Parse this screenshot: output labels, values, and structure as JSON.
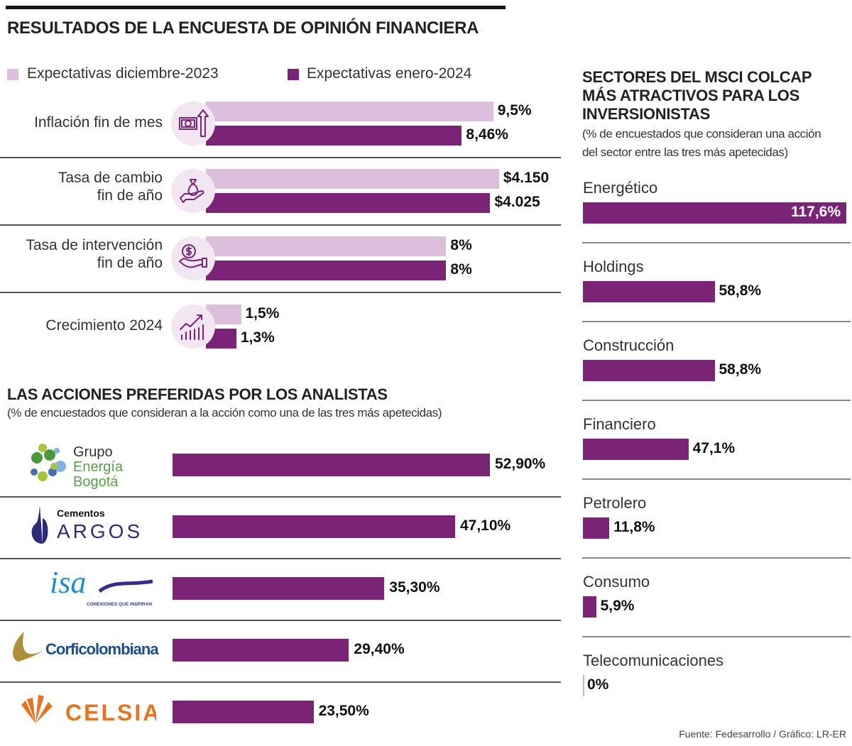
{
  "title": "RESULTADOS DE LA ENCUESTA DE OPINIÓN FINANCIERA",
  "colors": {
    "light": "#dcbfdd",
    "dark": "#7a2377",
    "icon_bg": "#f2e6f2"
  },
  "chart_data": [
    {
      "type": "bar",
      "orientation": "horizontal",
      "title": "RESULTADOS DE LA ENCUESTA DE OPINIÓN FINANCIERA",
      "legend": "top",
      "categories": [
        "Inflación fin de mes",
        "Tasa de cambio fin de año",
        "Tasa de intervención fin de año",
        "Crecimiento 2024"
      ],
      "category_lines": [
        [
          "Inflación fin de mes"
        ],
        [
          "Tasa de cambio",
          "fin de año"
        ],
        [
          "Tasa de intervención",
          "fin de año"
        ],
        [
          "Crecimiento 2024"
        ]
      ],
      "icons": [
        "money-up-arrow-icon",
        "money-bag-hand-icon",
        "dollar-coin-hand-icon",
        "growth-chart-icon"
      ],
      "series": [
        {
          "name": "Expectativas diciembre-2023",
          "values": [
            9.5,
            4150,
            8,
            1.5
          ],
          "labels": [
            "9,5%",
            "$4.150",
            "8%",
            "1,5%"
          ]
        },
        {
          "name": "Expectativas enero-2024",
          "values": [
            8.46,
            4025,
            8,
            1.3
          ],
          "labels": [
            "8,46%",
            "$4.025",
            "8%",
            "1,3%"
          ]
        }
      ]
    },
    {
      "type": "bar",
      "orientation": "horizontal",
      "title": "LAS ACCIONES PREFERIDAS POR LOS ANALISTAS",
      "subtitle": "(% de encuestados que consideran a la acción como una de las tres más apetecidas)",
      "categories": [
        "Grupo Energía Bogotá",
        "Cementos Argos",
        "ISA",
        "Corficolombiana",
        "Celsia"
      ],
      "logo_text": [
        [
          "Grupo",
          "Energía",
          "Bogotá"
        ],
        [
          "Cementos",
          "ARGOS"
        ],
        [
          "isa",
          "CONEXIONES QUE INSPIRAN"
        ],
        [
          "Corficolombiana"
        ],
        [
          "CELSIA"
        ]
      ],
      "values": [
        52.9,
        47.1,
        35.3,
        29.4,
        23.5
      ],
      "labels": [
        "52,90%",
        "47,10%",
        "35,30%",
        "29,40%",
        "23,50%"
      ]
    },
    {
      "type": "bar",
      "orientation": "horizontal",
      "title_lines": [
        "SECTORES DEL MSCI COLCAP",
        "MÁS ATRACTIVOS PARA LOS",
        "INVERSIONISTAS"
      ],
      "subtitle_lines": [
        "(% de encuestados que consideran una acción",
        "del sector entre las tres más apetecidas)"
      ],
      "categories": [
        "Energético",
        "Holdings",
        "Construcción",
        "Financiero",
        "Petrolero",
        "Consumo",
        "Telecomunicaciones"
      ],
      "values": [
        117.6,
        58.8,
        58.8,
        47.1,
        11.8,
        5.9,
        0
      ],
      "labels": [
        "117,6%",
        "58,8%",
        "58,8%",
        "47,1%",
        "11,8%",
        "5,9%",
        "0%"
      ]
    }
  ],
  "footer": "Fuente: Fedesarrollo / Gráfico: LR-ER"
}
